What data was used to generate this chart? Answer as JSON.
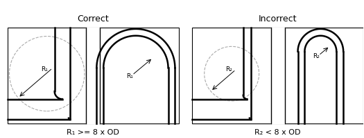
{
  "title_correct": "Correct",
  "title_incorrect": "Incorrect",
  "label_correct": "R₁ >= 8 x OD",
  "label_incorrect": "R₂ < 8 x OD",
  "r1_label": "R₁",
  "r2_label": "R₂",
  "bg_color": "#ffffff",
  "box_edge_color": "#000000",
  "pipe_color": "#000000",
  "dashed_circle_color": "#aaaaaa",
  "pipe_lw": 2.0,
  "pipe_inner_lw": 1.0,
  "fig_width": 5.25,
  "fig_height": 2.0
}
